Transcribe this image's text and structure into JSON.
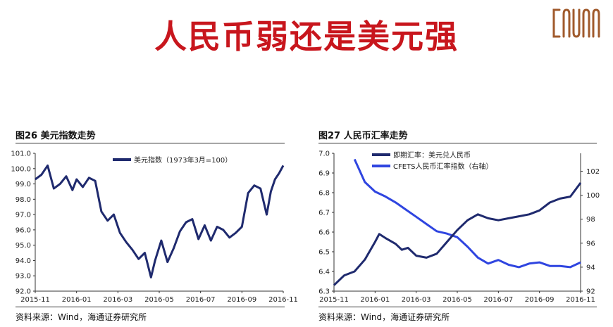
{
  "page": {
    "title": "人民币弱还是美元强",
    "colors": {
      "title": "#c8161d",
      "logo": "#a05a2c",
      "navy": "#1f2a6e",
      "blue": "#2f45e0"
    }
  },
  "left_panel": {
    "title": "图26 美元指数走势",
    "source": "资料来源：Wind，海通证券研究所"
  },
  "right_panel": {
    "title": "图27 人民币汇率走势",
    "source": "资料来源：Wind，海通证券研究所"
  },
  "chart_data": [
    {
      "type": "line",
      "x_ticks": [
        "2015-11",
        "2016-01",
        "2016-03",
        "2016-05",
        "2016-07",
        "2016-09",
        "2016-11"
      ],
      "y_ticks": [
        "92.0",
        "93.0",
        "94.0",
        "95.0",
        "96.0",
        "97.0",
        "98.0",
        "99.0",
        "100.0",
        "101.0"
      ],
      "ylim": [
        92,
        101
      ],
      "legend_position": "top-center",
      "series": [
        {
          "name": "美元指数（1973年3月=100）",
          "color": "#1f2a6e",
          "x": [
            0,
            0.3,
            0.6,
            0.9,
            1.2,
            1.5,
            1.8,
            2,
            2.3,
            2.6,
            2.9,
            3.2,
            3.5,
            3.8,
            4.1,
            4.4,
            4.7,
            5,
            5.3,
            5.6,
            5.8,
            6.1,
            6.4,
            6.7,
            7,
            7.3,
            7.6,
            7.9,
            8.2,
            8.5,
            8.8,
            9.1,
            9.4,
            9.7,
            10,
            10.3,
            10.6,
            10.9,
            11.2,
            11.4,
            11.6,
            11.8,
            12.0
          ],
          "values": [
            99.3,
            99.6,
            100.2,
            98.7,
            99.0,
            99.5,
            98.6,
            99.3,
            98.8,
            99.4,
            99.2,
            97.2,
            96.6,
            97.0,
            95.8,
            95.2,
            94.7,
            94.1,
            94.5,
            92.9,
            94.0,
            95.3,
            93.9,
            94.8,
            95.9,
            96.5,
            96.7,
            95.4,
            96.3,
            95.3,
            96.2,
            96.0,
            95.5,
            95.8,
            96.2,
            98.4,
            98.9,
            98.7,
            97.0,
            98.5,
            99.3,
            99.7,
            100.2
          ]
        }
      ]
    },
    {
      "type": "line",
      "x_ticks": [
        "2015-11",
        "2016-01",
        "2016-03",
        "2016-05",
        "2016-07",
        "2016-09",
        "2016-11"
      ],
      "y_ticks": [
        "6.3",
        "6.4",
        "6.5",
        "6.6",
        "6.7",
        "6.8",
        "6.9",
        "7.0"
      ],
      "y2_ticks": [
        "92",
        "94",
        "96",
        "98",
        "100",
        "102"
      ],
      "ylim": [
        6.3,
        7.0
      ],
      "y2lim": [
        92,
        103.5
      ],
      "legend_position": "top-left",
      "series": [
        {
          "name": "即期汇率：美元兑人民币",
          "color": "#1f2a6e",
          "axis": "left",
          "x": [
            0,
            0.5,
            1,
            1.5,
            2,
            2.2,
            2.5,
            3,
            3.3,
            3.6,
            4,
            4.5,
            5,
            5.5,
            6,
            6.5,
            7,
            7.5,
            8,
            8.5,
            9,
            9.5,
            10,
            10.5,
            11,
            11.5,
            12
          ],
          "values": [
            6.33,
            6.38,
            6.4,
            6.46,
            6.55,
            6.59,
            6.57,
            6.54,
            6.51,
            6.52,
            6.48,
            6.47,
            6.49,
            6.55,
            6.61,
            6.66,
            6.69,
            6.67,
            6.66,
            6.67,
            6.68,
            6.69,
            6.71,
            6.75,
            6.77,
            6.78,
            6.85
          ]
        },
        {
          "name": "CFETS人民币汇率指数（右轴）",
          "color": "#2f45e0",
          "axis": "right",
          "x": [
            1,
            1.5,
            2,
            2.5,
            3,
            3.5,
            4,
            4.5,
            5,
            5.5,
            6,
            6.5,
            7,
            7.5,
            8,
            8.5,
            9,
            9.5,
            10,
            10.5,
            11,
            11.5,
            12
          ],
          "values": [
            103.0,
            101.1,
            100.3,
            99.9,
            99.4,
            98.8,
            98.2,
            97.6,
            97.0,
            96.8,
            96.5,
            95.7,
            94.8,
            94.3,
            94.6,
            94.2,
            94.0,
            94.3,
            94.4,
            94.1,
            94.1,
            94.0,
            94.4
          ]
        }
      ]
    }
  ]
}
